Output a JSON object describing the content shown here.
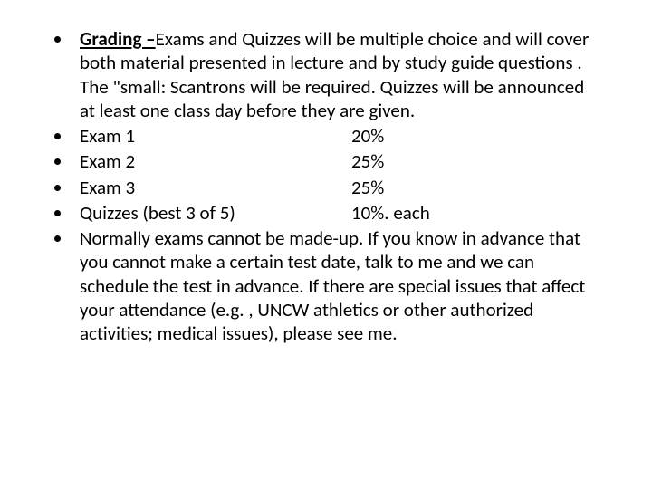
{
  "typography": {
    "font_family": "Calibri, 'Segoe UI', Arial, sans-serif",
    "font_size_pt": 16,
    "color": "#000000",
    "background_color": "#ffffff",
    "line_height": 1.25
  },
  "intro": {
    "heading": "Grading –",
    "body": "Exams and Quizzes will be multiple choice and will cover both material presented in lecture and by study guide questions . The \"small: Scantrons will be required. Quizzes will be announced at least one class day before they are given."
  },
  "grade_rows": [
    {
      "label": "Exam  1",
      "value": "20%"
    },
    {
      "label": "Exam 2",
      "value": "25%"
    },
    {
      "label": "Exam 3",
      "value": "25%"
    },
    {
      "label": "Quizzes (best 3 of 5)",
      "value": "10%. each"
    }
  ],
  "closing": "Normally exams cannot be made-up. If you know in advance that you cannot make a certain test date, talk to me and we can schedule the test in advance. If there are special issues that affect your attendance (e.g. , UNCW athletics or other authorized activities; medical issues), please see me."
}
